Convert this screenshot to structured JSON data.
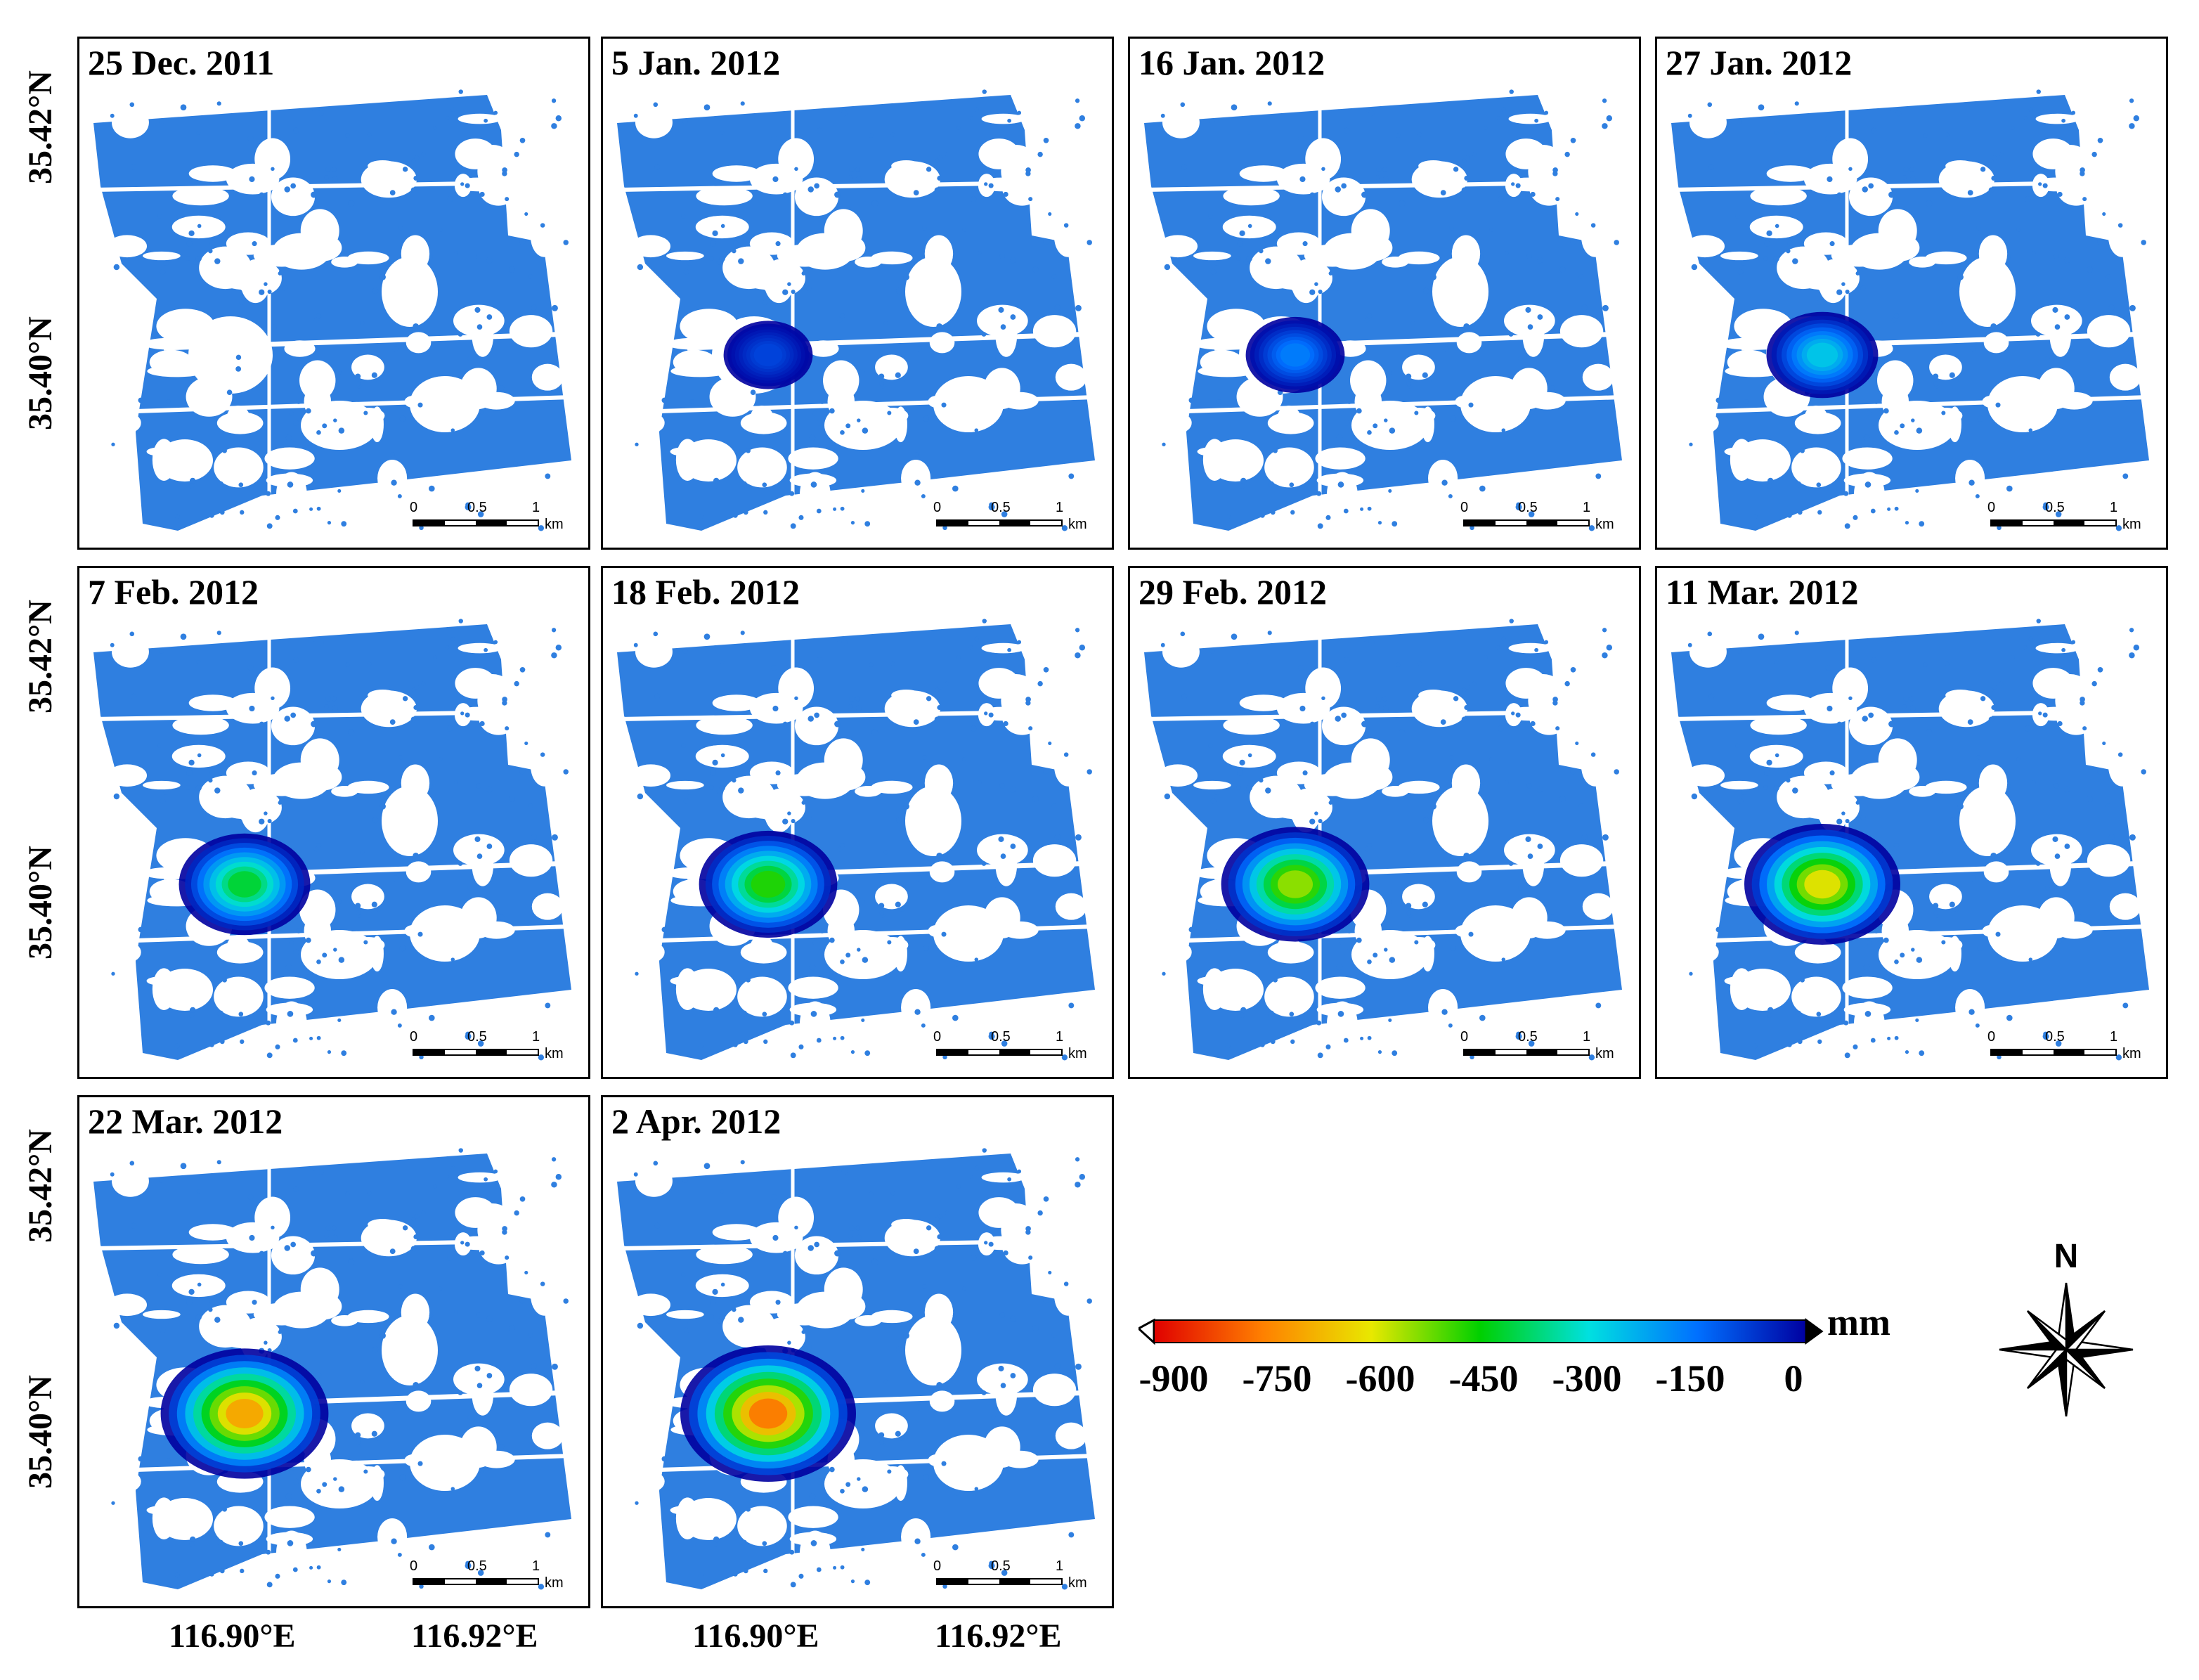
{
  "figure": {
    "panels": [
      {
        "date": "25 Dec. 2011",
        "intensity": 0.0
      },
      {
        "date": "5 Jan. 2012",
        "intensity": 0.12
      },
      {
        "date": "16 Jan. 2012",
        "intensity": 0.22
      },
      {
        "date": "27 Jan. 2012",
        "intensity": 0.35
      },
      {
        "date": "7 Feb. 2012",
        "intensity": 0.55
      },
      {
        "date": "18 Feb. 2012",
        "intensity": 0.62
      },
      {
        "date": "29 Feb. 2012",
        "intensity": 0.72
      },
      {
        "date": "11 Mar. 2012",
        "intensity": 0.8
      },
      {
        "date": "22 Mar. 2012",
        "intensity": 0.92
      },
      {
        "date": "2 Apr. 2012",
        "intensity": 1.0
      }
    ],
    "scalebar": {
      "labels": [
        "0",
        "0.5",
        "1"
      ],
      "unit": "km"
    },
    "latitude_labels": [
      "35.42°N",
      "35.40°N"
    ],
    "longitude_labels": [
      "116.90°E",
      "116.92°E"
    ],
    "colorbar": {
      "unit": "mm",
      "tick_labels": [
        "-900",
        "-750",
        "-600",
        "-450",
        "-300",
        "-150",
        "0"
      ],
      "range": [
        -900,
        0
      ],
      "colors": [
        "#e00000",
        "#ff8000",
        "#e8e800",
        "#00d000",
        "#00e0e0",
        "#0070ff",
        "#0000a0"
      ]
    },
    "north_arrow": {
      "label": "N",
      "icon": "compass-rose-icon"
    }
  }
}
